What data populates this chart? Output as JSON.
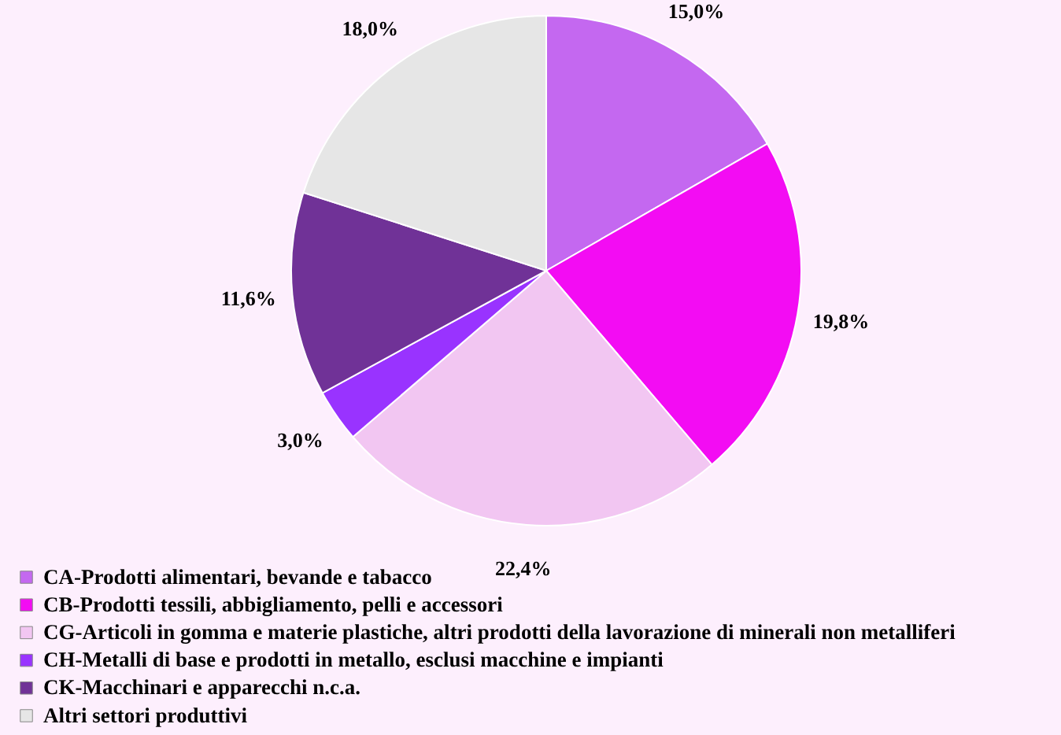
{
  "chart_data": {
    "type": "pie",
    "categories": [
      "CA-Prodotti alimentari, bevande e tabacco",
      "CB-Prodotti tessili, abbigliamento, pelli e accessori",
      "CG-Articoli in gomma e materie plastiche, altri prodotti della lavorazione di minerali non metalliferi",
      "CH-Metalli di base e prodotti in metallo, esclusi macchine e impianti",
      "CK-Macchinari e apparecchi n.c.a.",
      "Altri settori produttivi"
    ],
    "values": [
      15.0,
      19.8,
      22.4,
      3.0,
      11.6,
      18.0
    ],
    "value_labels": [
      "15,0%",
      "19,8%",
      "22,4%",
      "3,0%",
      "11,6%",
      "18,0%"
    ],
    "colors": [
      "#c468f0",
      "#f30cf3",
      "#f2c6f2",
      "#9933ff",
      "#703297",
      "#e6e6e6"
    ],
    "legend": "bottom left"
  }
}
